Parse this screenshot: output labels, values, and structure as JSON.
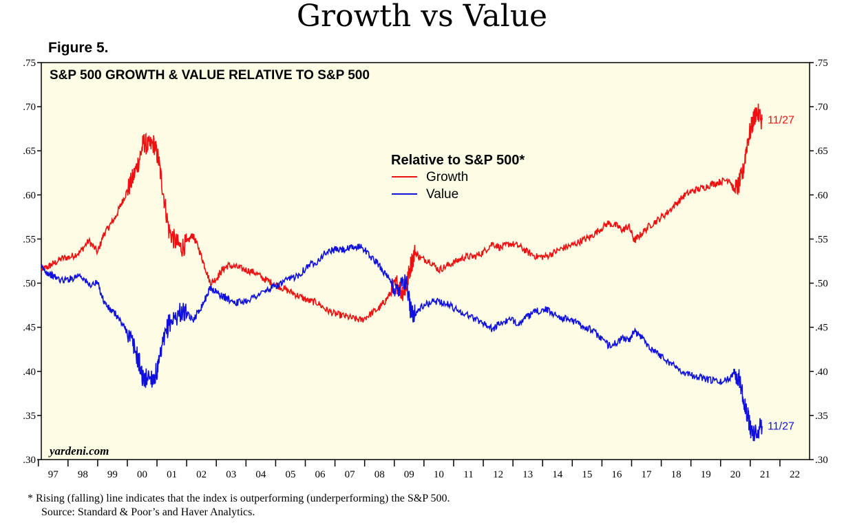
{
  "title": "Growth vs Value",
  "figure_label": "Figure 5.",
  "chart_data": {
    "type": "line",
    "title": "S&P 500 GROWTH & VALUE RELATIVE TO S&P 500",
    "legend_title": "Relative to S&P 500*",
    "legend_position": "top-center",
    "watermark": "yardeni.com",
    "ylim": [
      0.3,
      0.75
    ],
    "xlim": [
      1996.6,
      2022.5
    ],
    "y_ticks": [
      0.3,
      0.35,
      0.4,
      0.45,
      0.5,
      0.55,
      0.6,
      0.65,
      0.7,
      0.75
    ],
    "y_tick_labels": [
      ".30",
      ".35",
      ".40",
      ".45",
      ".50",
      ".55",
      ".60",
      ".65",
      ".70",
      ".75"
    ],
    "x_tick_labels": [
      "97",
      "98",
      "99",
      "00",
      "01",
      "02",
      "03",
      "04",
      "05",
      "06",
      "07",
      "08",
      "09",
      "10",
      "11",
      "12",
      "13",
      "14",
      "15",
      "16",
      "17",
      "18",
      "19",
      "20",
      "21",
      "22"
    ],
    "x_label_positions": [
      1997.0,
      1998.0,
      1999.0,
      2000.0,
      2001.0,
      2002.0,
      2003.0,
      2004.0,
      2005.0,
      2006.0,
      2007.0,
      2008.0,
      2009.0,
      2010.0,
      2011.0,
      2012.0,
      2013.0,
      2014.0,
      2015.0,
      2016.0,
      2017.0,
      2018.0,
      2019.0,
      2020.0,
      2021.0,
      2022.0
    ],
    "series": [
      {
        "name": "Growth",
        "color": "#ee1111",
        "end_label": "11/27",
        "x": [
          1996.6,
          1996.8,
          1997.0,
          1997.3,
          1997.6,
          1997.9,
          1998.2,
          1998.5,
          1998.7,
          1998.9,
          1999.1,
          1999.3,
          1999.5,
          1999.7,
          1999.9,
          2000.05,
          2000.2,
          2000.4,
          2000.55,
          2000.7,
          2000.9,
          2001.1,
          2001.3,
          2001.5,
          2001.7,
          2001.9,
          2002.1,
          2002.3,
          2002.5,
          2002.7,
          2002.9,
          2003.2,
          2003.5,
          2003.8,
          2004.1,
          2004.4,
          2004.7,
          2005.0,
          2005.3,
          2005.6,
          2005.9,
          2006.2,
          2006.5,
          2006.8,
          2007.1,
          2007.4,
          2007.7,
          2008.0,
          2008.2,
          2008.4,
          2008.6,
          2008.75,
          2008.9,
          2009.05,
          2009.2,
          2009.4,
          2009.7,
          2010.0,
          2010.3,
          2010.6,
          2010.9,
          2011.2,
          2011.5,
          2011.8,
          2012.1,
          2012.4,
          2012.7,
          2013.0,
          2013.3,
          2013.6,
          2013.9,
          2014.2,
          2014.5,
          2014.8,
          2015.1,
          2015.4,
          2015.7,
          2016.0,
          2016.2,
          2016.4,
          2016.6,
          2016.8,
          2017.1,
          2017.4,
          2017.7,
          2018.0,
          2018.3,
          2018.6,
          2018.9,
          2019.2,
          2019.5,
          2019.8,
          2019.95,
          2020.1,
          2020.25,
          2020.4,
          2020.55,
          2020.7,
          2020.9
        ],
        "values": [
          0.515,
          0.518,
          0.522,
          0.528,
          0.53,
          0.535,
          0.548,
          0.535,
          0.555,
          0.565,
          0.575,
          0.59,
          0.605,
          0.62,
          0.64,
          0.66,
          0.655,
          0.658,
          0.64,
          0.605,
          0.56,
          0.548,
          0.54,
          0.545,
          0.555,
          0.54,
          0.52,
          0.5,
          0.505,
          0.515,
          0.52,
          0.518,
          0.515,
          0.512,
          0.505,
          0.5,
          0.495,
          0.49,
          0.485,
          0.48,
          0.478,
          0.47,
          0.465,
          0.463,
          0.46,
          0.458,
          0.465,
          0.472,
          0.48,
          0.49,
          0.5,
          0.49,
          0.495,
          0.52,
          0.535,
          0.528,
          0.525,
          0.515,
          0.52,
          0.525,
          0.53,
          0.53,
          0.535,
          0.545,
          0.54,
          0.545,
          0.542,
          0.535,
          0.53,
          0.53,
          0.535,
          0.54,
          0.543,
          0.548,
          0.552,
          0.56,
          0.568,
          0.565,
          0.56,
          0.565,
          0.548,
          0.555,
          0.565,
          0.572,
          0.58,
          0.59,
          0.6,
          0.605,
          0.608,
          0.612,
          0.615,
          0.618,
          0.605,
          0.61,
          0.625,
          0.66,
          0.678,
          0.695,
          0.685
        ]
      },
      {
        "name": "Value",
        "color": "#1111dd",
        "end_label": "11/27",
        "x": [
          1996.6,
          1996.8,
          1997.0,
          1997.3,
          1997.6,
          1997.9,
          1998.2,
          1998.5,
          1998.7,
          1998.9,
          1999.1,
          1999.3,
          1999.5,
          1999.7,
          1999.9,
          2000.05,
          2000.2,
          2000.4,
          2000.55,
          2000.7,
          2000.9,
          2001.1,
          2001.3,
          2001.5,
          2001.7,
          2001.9,
          2002.1,
          2002.3,
          2002.5,
          2002.7,
          2002.9,
          2003.2,
          2003.5,
          2003.8,
          2004.1,
          2004.4,
          2004.7,
          2005.0,
          2005.3,
          2005.6,
          2005.9,
          2006.2,
          2006.5,
          2006.8,
          2007.1,
          2007.4,
          2007.7,
          2008.0,
          2008.2,
          2008.4,
          2008.6,
          2008.75,
          2008.9,
          2009.05,
          2009.2,
          2009.4,
          2009.7,
          2010.0,
          2010.3,
          2010.6,
          2010.9,
          2011.2,
          2011.5,
          2011.8,
          2012.1,
          2012.4,
          2012.7,
          2013.0,
          2013.3,
          2013.6,
          2013.9,
          2014.2,
          2014.5,
          2014.8,
          2015.1,
          2015.4,
          2015.7,
          2016.0,
          2016.2,
          2016.4,
          2016.6,
          2016.8,
          2017.1,
          2017.4,
          2017.7,
          2018.0,
          2018.3,
          2018.6,
          2018.9,
          2019.2,
          2019.5,
          2019.8,
          2019.95,
          2020.1,
          2020.25,
          2020.4,
          2020.55,
          2020.7,
          2020.9
        ],
        "values": [
          0.518,
          0.512,
          0.508,
          0.503,
          0.505,
          0.51,
          0.498,
          0.5,
          0.48,
          0.47,
          0.465,
          0.455,
          0.445,
          0.43,
          0.41,
          0.388,
          0.395,
          0.392,
          0.405,
          0.43,
          0.455,
          0.46,
          0.468,
          0.465,
          0.458,
          0.468,
          0.48,
          0.495,
          0.49,
          0.485,
          0.482,
          0.478,
          0.48,
          0.485,
          0.49,
          0.495,
          0.5,
          0.505,
          0.51,
          0.52,
          0.525,
          0.535,
          0.538,
          0.538,
          0.54,
          0.542,
          0.53,
          0.52,
          0.51,
          0.5,
          0.49,
          0.505,
          0.5,
          0.47,
          0.465,
          0.472,
          0.478,
          0.48,
          0.476,
          0.47,
          0.465,
          0.46,
          0.455,
          0.448,
          0.455,
          0.458,
          0.455,
          0.462,
          0.468,
          0.47,
          0.465,
          0.46,
          0.458,
          0.452,
          0.448,
          0.44,
          0.43,
          0.432,
          0.438,
          0.435,
          0.445,
          0.44,
          0.428,
          0.42,
          0.412,
          0.405,
          0.398,
          0.395,
          0.392,
          0.39,
          0.388,
          0.392,
          0.4,
          0.395,
          0.375,
          0.35,
          0.332,
          0.33,
          0.338
        ]
      }
    ]
  },
  "footnote": "*  Rising (falling) line indicates that the index is outperforming (underperforming) the S&P 500.",
  "source": "Source: Standard & Poor’s and Haver Analytics."
}
